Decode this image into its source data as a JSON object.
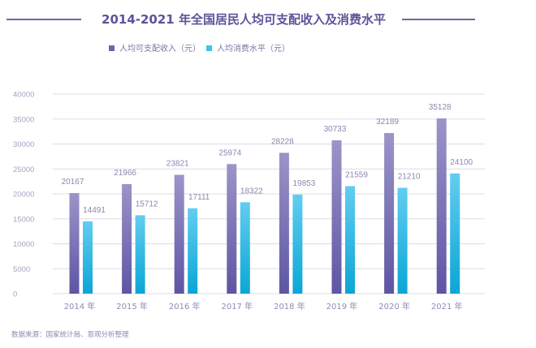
{
  "chart_data": {
    "type": "bar",
    "title": "2014-2021 年全国居民人均可支配收入及消费水平",
    "xlabel": "",
    "ylabel": "",
    "categories": [
      "2014 年",
      "2015 年",
      "2016 年",
      "2017 年",
      "2018 年",
      "2019 年",
      "2020 年",
      "2021 年"
    ],
    "series": [
      {
        "name": "人均可支配收入（元）",
        "color": "#7068b0",
        "values": [
          20167,
          21966,
          23821,
          25974,
          28228,
          30733,
          32189,
          35128
        ]
      },
      {
        "name": "人均消费水平（元）",
        "color": "#3ec3e8",
        "values": [
          14491,
          15712,
          17111,
          18322,
          19853,
          21559,
          21210,
          24100
        ]
      }
    ],
    "ylim": [
      0,
      40000
    ],
    "yticks": [
      0,
      5000,
      10000,
      15000,
      20000,
      25000,
      30000,
      35000,
      40000
    ],
    "grid": true,
    "legend": "top-center",
    "data_labels": true
  },
  "source_note": "数据来源：国家统计局、恩观分析整理"
}
